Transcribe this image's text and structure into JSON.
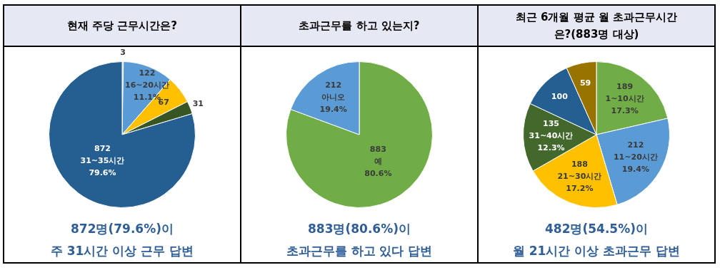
{
  "chart_data": [
    {
      "type": "pie",
      "title": "현재 주당 근무시간은?",
      "categories": [
        null,
        "16~20시간",
        null,
        null,
        "31~35시간"
      ],
      "values": [
        3,
        122,
        67,
        31,
        872
      ],
      "colors": [
        "#a5a5a5",
        "#5b9bd5",
        "#ffc000",
        "#375623",
        "#255e91"
      ],
      "data_labels": true,
      "legend": false,
      "annotations": [
        {
          "text": "11.1%",
          "x": "16~20시간"
        },
        {
          "text": "79.6%",
          "x": "31~35시간"
        },
        "872명(79.6%)이",
        "주 31시간 이상 근무 답변"
      ]
    },
    {
      "type": "pie",
      "title": "초과근무를 하고 있는지?",
      "categories": [
        "예",
        "아니오"
      ],
      "values": [
        883,
        212
      ],
      "colors": [
        "#70ad47",
        "#5b9bd5"
      ],
      "data_labels": true,
      "legend": false,
      "annotations": [
        {
          "text": "80.6%",
          "x": "예"
        },
        {
          "text": "19.4%",
          "x": "아니오"
        },
        "883명(80.6%)이",
        "초과근무를 하고 있다 답변"
      ]
    },
    {
      "type": "pie",
      "title": "최근 6개월 평균 월 초과근무시간은?(883명 대상)",
      "categories": [
        "1~10시간",
        "11~20시간",
        "21~30시간",
        "31~40시간",
        null,
        null
      ],
      "values": [
        189,
        212,
        188,
        135,
        100,
        59
      ],
      "colors": [
        "#70ad47",
        "#5b9bd5",
        "#ffc000",
        "#43682b",
        "#255e91",
        "#997300"
      ],
      "data_labels": true,
      "legend": false,
      "annotations": [
        {
          "text": "17.3%",
          "x": "1~10시간"
        },
        {
          "text": "19.4%",
          "x": "11~20시간"
        },
        {
          "text": "17.2%",
          "x": "21~30시간"
        },
        {
          "text": "12.3%",
          "x": "31~40시간"
        },
        "482명(54.5%)이",
        "월 21시간 이상 초과근무 답변"
      ]
    }
  ]
}
